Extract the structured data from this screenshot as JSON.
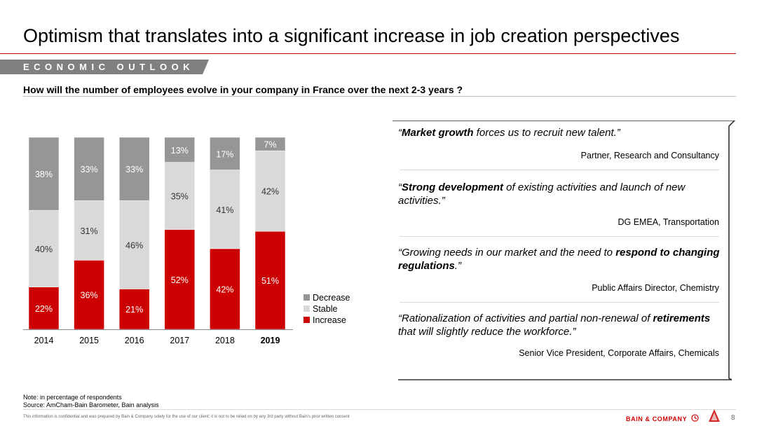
{
  "title": "Optimism that translates into a significant increase in job creation perspectives",
  "section_tag": "ECONOMIC OUTLOOK",
  "question": "How will the number of employees evolve in your company in France over the next 2-3 years ?",
  "colors": {
    "decrease": "#969696",
    "stable": "#d9d9d9",
    "increase": "#cc0000",
    "accent": "#cc0000"
  },
  "chart_data": {
    "type": "bar",
    "stacked": true,
    "categories": [
      "2014",
      "2015",
      "2016",
      "2017",
      "2018",
      "2019"
    ],
    "highlight_category": "2019",
    "series": [
      {
        "name": "Increase",
        "values": [
          22,
          36,
          21,
          52,
          42,
          51
        ]
      },
      {
        "name": "Stable",
        "values": [
          40,
          31,
          46,
          35,
          41,
          42
        ]
      },
      {
        "name": "Decrease",
        "values": [
          38,
          33,
          33,
          13,
          17,
          7
        ]
      }
    ],
    "value_suffix": "%",
    "ylim": [
      0,
      100
    ],
    "legend": [
      "Decrease",
      "Stable",
      "Increase"
    ],
    "legend_position": "right"
  },
  "quotes": [
    {
      "segments": [
        [
          "Market growth",
          true
        ],
        [
          " forces us to recruit new talent.",
          false
        ]
      ],
      "attribution": "Partner, Research and Consultancy"
    },
    {
      "segments": [
        [
          "Strong development",
          true
        ],
        [
          " of existing activities and launch of new activities.",
          false
        ]
      ],
      "attribution": "DG EMEA, Transportation"
    },
    {
      "segments": [
        [
          "Growing needs in our market and the need to ",
          false
        ],
        [
          "respond to changing regulations",
          true
        ],
        [
          ".",
          false
        ]
      ],
      "attribution": "Public Affairs Director, Chemistry"
    },
    {
      "segments": [
        [
          "Rationalization of activities and partial non-renewal of ",
          false
        ],
        [
          "retirements",
          true
        ],
        [
          " that will slightly reduce the workforce.",
          false
        ]
      ],
      "attribution": "Senior Vice President, Corporate Affairs, Chemicals"
    }
  ],
  "note_line1": "Note: in percentage of respondents",
  "note_line2": "Source: AmCham-Bain Barometer, Bain analysis",
  "footer_text": "This information is confidential and was prepared by Bain & Company solely for the use of our client; it is not to be relied on by any 3rd party without Bain's prior written consent",
  "brand": "BAIN & COMPANY",
  "brand_icon": "bain-logo-icon",
  "page_number": "8"
}
